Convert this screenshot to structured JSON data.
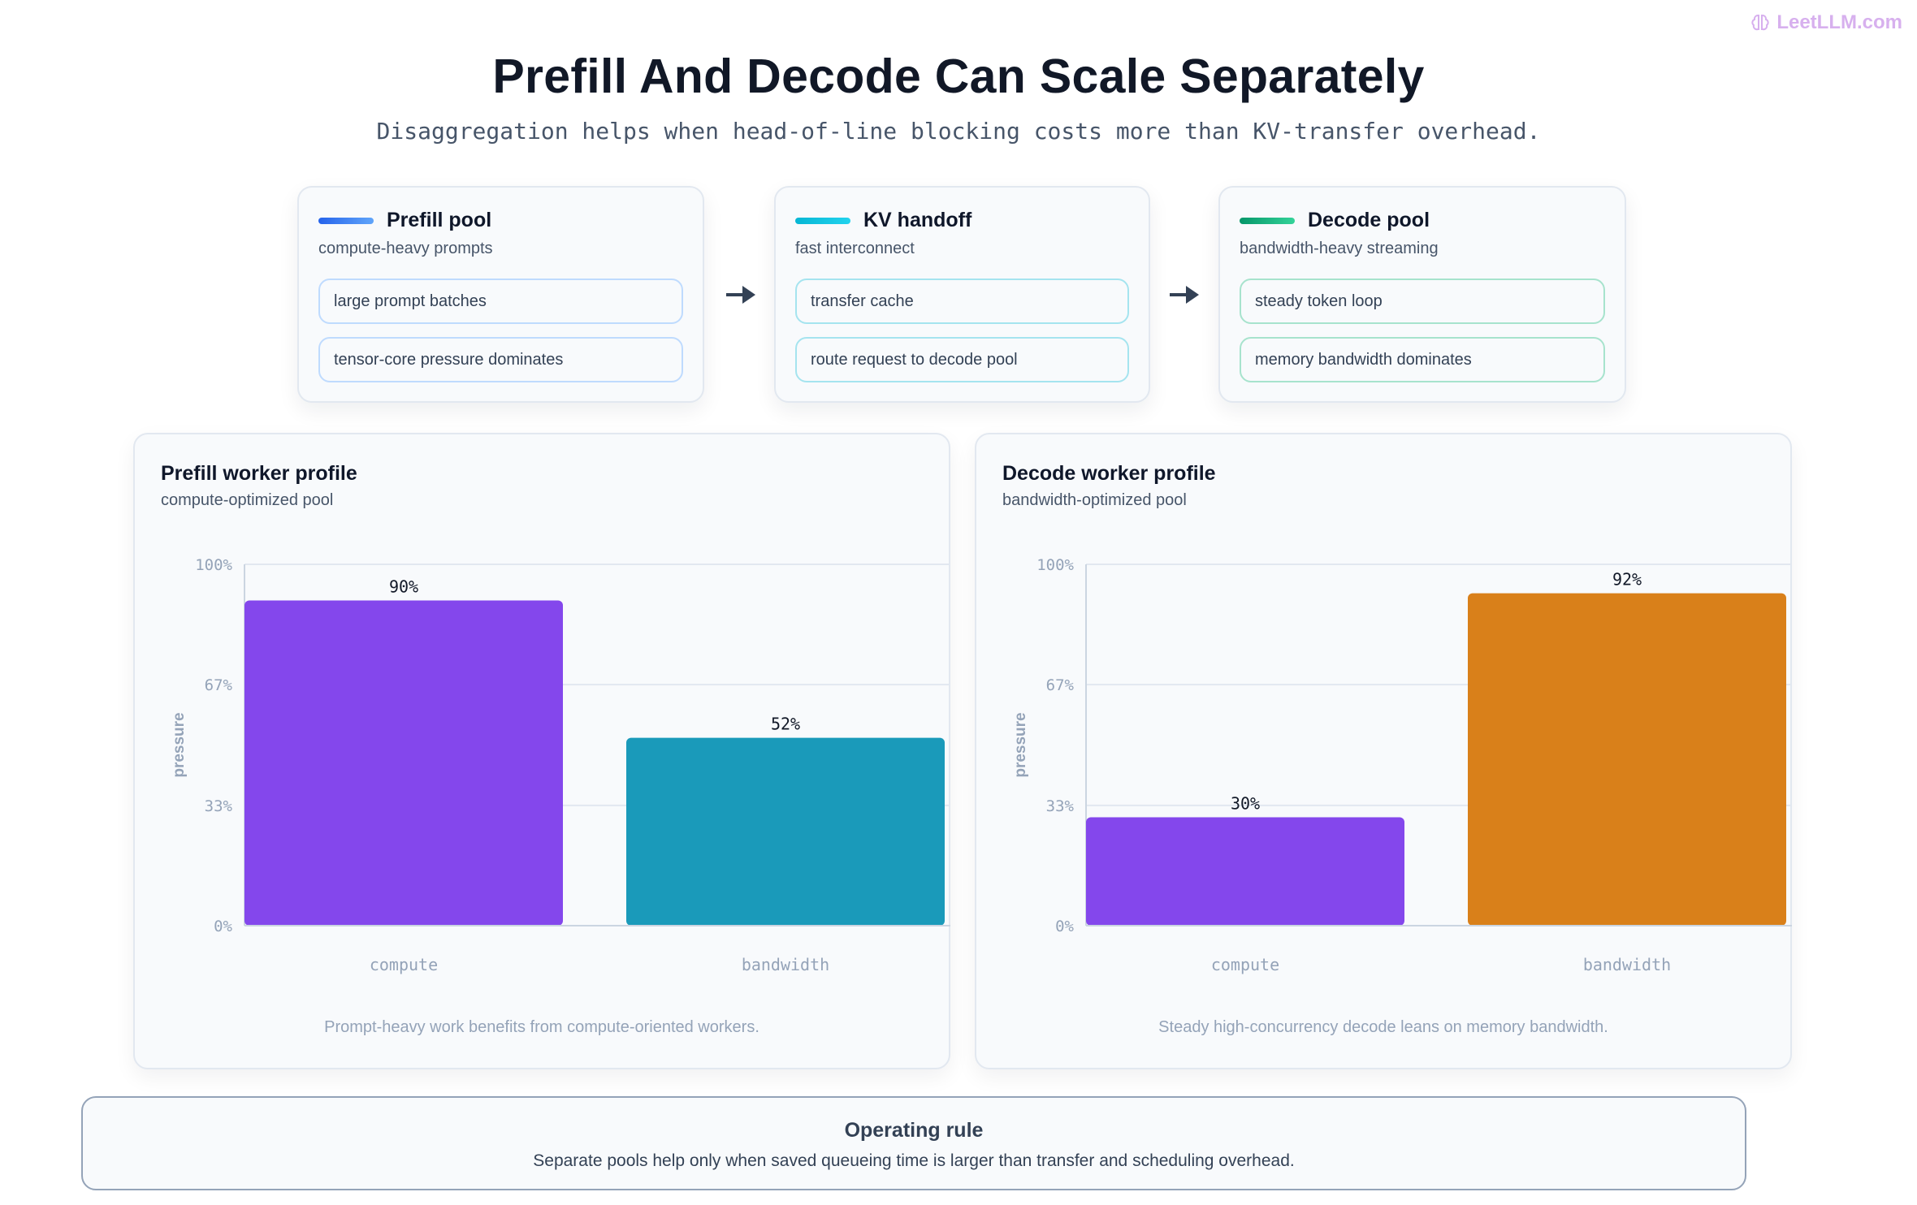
{
  "brand": {
    "text": "LeetLLM.com",
    "color": "#d7b0ee"
  },
  "header": {
    "title": "Prefill And Decode Can Scale Separately",
    "subtitle": "Disaggregation helps when head-of-line blocking costs more than KV-transfer overhead."
  },
  "flow": {
    "cards": [
      {
        "title": "Prefill pool",
        "subtitle": "compute-heavy prompts",
        "items": [
          "large prompt batches",
          "tensor-core pressure dominates"
        ],
        "accent": "#3b82f6",
        "chip_border": "#bfdbfe"
      },
      {
        "title": "KV handoff",
        "subtitle": "fast interconnect",
        "items": [
          "transfer cache",
          "route request to decode pool"
        ],
        "accent": "#06b6d4",
        "chip_border": "#a5e4ef"
      },
      {
        "title": "Decode pool",
        "subtitle": "bandwidth-heavy streaming",
        "items": [
          "steady token loop",
          "memory bandwidth dominates"
        ],
        "accent": "#10b981",
        "chip_border": "#a7e3cd"
      }
    ],
    "arrow_icon": "arrow-right-icon"
  },
  "chart_data": [
    {
      "type": "bar",
      "title": "Prefill worker profile",
      "subtitle": "compute-optimized pool",
      "categories": [
        "compute",
        "bandwidth"
      ],
      "values": [
        90,
        52
      ],
      "value_labels": [
        "90%",
        "52%"
      ],
      "colors": [
        "#8447ec",
        "#1a9aba"
      ],
      "ylabel": "pressure",
      "ylim": [
        0,
        100
      ],
      "yticks": [
        "0%",
        "33%",
        "67%",
        "100%"
      ],
      "ytick_values": [
        0,
        33.3,
        66.7,
        100
      ],
      "grid": true,
      "caption": "Prompt-heavy work benefits from compute-oriented workers."
    },
    {
      "type": "bar",
      "title": "Decode worker profile",
      "subtitle": "bandwidth-optimized pool",
      "categories": [
        "compute",
        "bandwidth"
      ],
      "values": [
        30,
        92
      ],
      "value_labels": [
        "30%",
        "92%"
      ],
      "colors": [
        "#8447ec",
        "#d9801a"
      ],
      "ylabel": "pressure",
      "ylim": [
        0,
        100
      ],
      "yticks": [
        "0%",
        "33%",
        "67%",
        "100%"
      ],
      "ytick_values": [
        0,
        33.3,
        66.7,
        100
      ],
      "grid": true,
      "caption": "Steady high-concurrency decode leans on memory bandwidth."
    }
  ],
  "rule": {
    "title": "Operating rule",
    "text": "Separate pools help only when saved queueing time is larger than transfer and scheduling overhead."
  }
}
